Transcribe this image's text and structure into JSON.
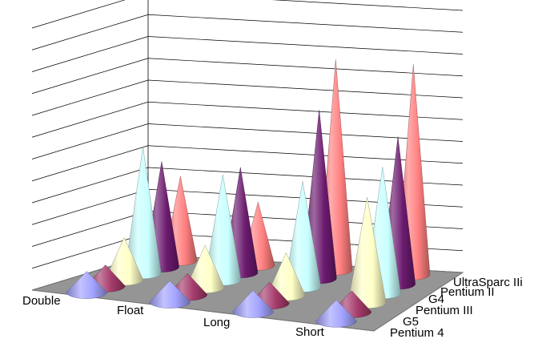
{
  "chart_data": {
    "type": "3d-cone",
    "categories": [
      "Double",
      "Float",
      "Long",
      "Short"
    ],
    "series": [
      {
        "name": "Pentium 4",
        "color": "#a3a3ff",
        "values": [
          1,
          1,
          1,
          1
        ]
      },
      {
        "name": "G5",
        "color": "#a63c6c",
        "values": [
          1,
          1,
          1,
          1
        ]
      },
      {
        "name": "Pentium III",
        "color": "#ffffc8",
        "values": [
          2,
          2,
          2,
          5
        ]
      },
      {
        "name": "G4",
        "color": "#c8ffff",
        "values": [
          6,
          5,
          5,
          6
        ]
      },
      {
        "name": "Pentium II",
        "color": "#6b1a6e",
        "values": [
          5,
          5,
          8,
          7
        ]
      },
      {
        "name": "UltraSparc IIi",
        "color": "#ff7f7f",
        "values": [
          4,
          3,
          10,
          10
        ]
      }
    ],
    "ylim": [
      0,
      12
    ],
    "grid": true,
    "legend": "none"
  }
}
